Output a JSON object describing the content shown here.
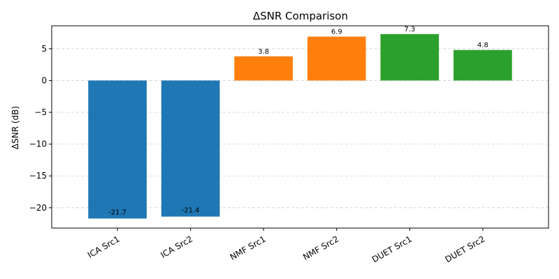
{
  "chart_data": {
    "type": "bar",
    "title": "ΔSNR Comparison",
    "xlabel": "",
    "ylabel": "ΔSNR (dB)",
    "categories": [
      "ICA Src1",
      "ICA Src2",
      "NMF Src1",
      "NMF Src2",
      "DUET Src1",
      "DUET Src2"
    ],
    "values": [
      -21.7,
      -21.4,
      3.8,
      6.9,
      7.3,
      4.8
    ],
    "data_labels": [
      "-21.7",
      "-21.4",
      "3.8",
      "6.9",
      "7.3",
      "4.8"
    ],
    "bar_colors": [
      "#1f77b4",
      "#1f77b4",
      "#ff7f0e",
      "#ff7f0e",
      "#2ca02c",
      "#2ca02c"
    ],
    "ylim": [
      -23.2,
      8.6
    ],
    "yticks": [
      -20,
      -15,
      -10,
      -5,
      0,
      5
    ],
    "ytick_labels": [
      "−20",
      "−15",
      "−10",
      "−5",
      "0",
      "5"
    ],
    "grid": "y-dashed",
    "legend": "none"
  }
}
